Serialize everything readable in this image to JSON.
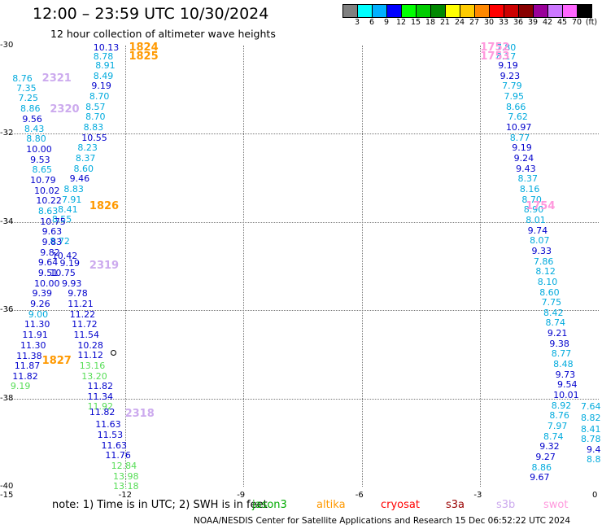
{
  "title": "12:00 – 23:59 UTC 10/30/2024",
  "subtitle": "12 hour collection of altimeter wave heights",
  "colorbar": {
    "colors": [
      "#808080",
      "#00ffff",
      "#00b0ff",
      "#0000ff",
      "#00ff00",
      "#00cc00",
      "#008800",
      "#ffff00",
      "#ffcc00",
      "#ff8800",
      "#ff0000",
      "#cc0000",
      "#880000",
      "#990099",
      "#cc77ff",
      "#ff66ff",
      "#000000"
    ],
    "ticks": [
      "3",
      "6",
      "9",
      "12",
      "15",
      "18",
      "21",
      "24",
      "27",
      "30",
      "33",
      "36",
      "39",
      "42",
      "45",
      "70",
      "(ft)"
    ]
  },
  "axes": {
    "lat_labels": [
      "-30",
      "-32",
      "-34",
      "-36",
      "-38",
      "-40"
    ],
    "lon_labels": [
      "-15",
      "-12",
      "-9",
      "-6",
      "-3",
      "0"
    ]
  },
  "note": "note:  1) Time is in UTC; 2) SWH is in feet",
  "satellites": [
    {
      "name": "jason3",
      "color": "#00aa00"
    },
    {
      "name": "altika",
      "color": "#ff9900"
    },
    {
      "name": "cryosat",
      "color": "#ff0000"
    },
    {
      "name": "s3a",
      "color": "#990000"
    },
    {
      "name": "s3b",
      "color": "#ccaaee"
    },
    {
      "name": "swot",
      "color": "#ff99dd"
    }
  ],
  "footer": "NOAA/NESDIS Center for Satellite Applications and Research    15 Dec 06:52:22 UTC 2024",
  "chart_data": {
    "type": "scatter",
    "title": "12:00 – 23:59 UTC 10/30/2024",
    "subtitle": "12 hour collection of altimeter wave heights",
    "xlim": [
      -15,
      0
    ],
    "ylim": [
      -40,
      -30
    ],
    "time_tags": [
      {
        "text": "1824",
        "lon": -11.9,
        "lat": -30.05,
        "color": "#ff9900"
      },
      {
        "text": "1825",
        "lon": -11.9,
        "lat": -30.25,
        "color": "#ff9900"
      },
      {
        "text": "1826",
        "lon": -12.9,
        "lat": -33.65,
        "color": "#ff9900"
      },
      {
        "text": "1827",
        "lon": -14.1,
        "lat": -37.15,
        "color": "#ff9900"
      },
      {
        "text": "2321",
        "lon": -14.1,
        "lat": -30.75,
        "color": "#ccaaee"
      },
      {
        "text": "2320",
        "lon": -13.9,
        "lat": -31.45,
        "color": "#ccaaee"
      },
      {
        "text": "2319",
        "lon": -12.9,
        "lat": -35.0,
        "color": "#ccaaee"
      },
      {
        "text": "2318",
        "lon": -12.0,
        "lat": -38.35,
        "color": "#ccaaee"
      },
      {
        "text": "1752",
        "lon": -3.0,
        "lat": -30.05,
        "color": "#ff99dd"
      },
      {
        "text": "1753",
        "lon": -3.0,
        "lat": -30.25,
        "color": "#ff99dd"
      },
      {
        "text": "1754",
        "lon": -1.85,
        "lat": -33.65,
        "color": "#ff99dd"
      }
    ],
    "points": [
      {
        "v": "10.13",
        "lon": -12.8,
        "lat": -30.05,
        "c": "#0000cc"
      },
      {
        "v": "8.78",
        "lon": -12.8,
        "lat": -30.25,
        "c": "#00aadd"
      },
      {
        "v": "8.91",
        "lon": -12.75,
        "lat": -30.47,
        "c": "#00aadd"
      },
      {
        "v": "8.49",
        "lon": -12.8,
        "lat": -30.7,
        "c": "#00aadd"
      },
      {
        "v": "9.19",
        "lon": -12.85,
        "lat": -30.93,
        "c": "#0000cc"
      },
      {
        "v": "8.70",
        "lon": -12.9,
        "lat": -31.17,
        "c": "#00aadd"
      },
      {
        "v": "8.57",
        "lon": -13.0,
        "lat": -31.4,
        "c": "#00aadd"
      },
      {
        "v": "8.70",
        "lon": -13.0,
        "lat": -31.63,
        "c": "#00aadd"
      },
      {
        "v": "8.83",
        "lon": -13.05,
        "lat": -31.87,
        "c": "#00aadd"
      },
      {
        "v": "10.55",
        "lon": -13.1,
        "lat": -32.1,
        "c": "#0000cc"
      },
      {
        "v": "8.23",
        "lon": -13.2,
        "lat": -32.33,
        "c": "#00aadd"
      },
      {
        "v": "8.37",
        "lon": -13.25,
        "lat": -32.57,
        "c": "#00aadd"
      },
      {
        "v": "8.60",
        "lon": -13.3,
        "lat": -32.8,
        "c": "#00aadd"
      },
      {
        "v": "9.46",
        "lon": -13.4,
        "lat": -33.03,
        "c": "#0000cc"
      },
      {
        "v": "8.83",
        "lon": -13.55,
        "lat": -33.27,
        "c": "#00aadd"
      },
      {
        "v": "7.91",
        "lon": -13.6,
        "lat": -33.5,
        "c": "#00aadd"
      },
      {
        "v": "8.41",
        "lon": -13.7,
        "lat": -33.73,
        "c": "#00aadd"
      },
      {
        "v": "8.55",
        "lon": -13.85,
        "lat": -33.95,
        "c": "#00aadd"
      },
      {
        "v": "8.72",
        "lon": -13.9,
        "lat": -34.45,
        "c": "#00aadd"
      },
      {
        "v": "9.19",
        "lon": -13.65,
        "lat": -34.95,
        "c": "#0000cc"
      },
      {
        "v": "10.75",
        "lon": -13.9,
        "lat": -35.17,
        "c": "#0000cc"
      },
      {
        "v": "9.93",
        "lon": -13.6,
        "lat": -35.4,
        "c": "#0000cc"
      },
      {
        "v": "9.78",
        "lon": -13.45,
        "lat": -35.63,
        "c": "#0000cc"
      },
      {
        "v": "11.21",
        "lon": -13.45,
        "lat": -35.87,
        "c": "#0000cc"
      },
      {
        "v": "11.22",
        "lon": -13.4,
        "lat": -36.1,
        "c": "#0000cc"
      },
      {
        "v": "11.72",
        "lon": -13.35,
        "lat": -36.33,
        "c": "#0000cc"
      },
      {
        "v": "11.54",
        "lon": -13.3,
        "lat": -36.57,
        "c": "#0000cc"
      },
      {
        "v": "10.28",
        "lon": -13.2,
        "lat": -36.8,
        "c": "#0000cc"
      },
      {
        "v": "11.12",
        "lon": -13.2,
        "lat": -37.03,
        "c": "#0000cc"
      },
      {
        "v": "13.16",
        "lon": -13.15,
        "lat": -37.27,
        "c": "#55dd55"
      },
      {
        "v": "13.20",
        "lon": -13.1,
        "lat": -37.5,
        "c": "#55dd55"
      },
      {
        "v": "11.82",
        "lon": -12.95,
        "lat": -37.73,
        "c": "#0000cc"
      },
      {
        "v": "11.34",
        "lon": -12.95,
        "lat": -37.97,
        "c": "#0000cc"
      },
      {
        "v": "11.92",
        "lon": -12.95,
        "lat": -38.2,
        "c": "#55dd55"
      },
      {
        "v": "11.82",
        "lon": -12.9,
        "lat": -38.33,
        "c": "#0000cc"
      },
      {
        "v": "11.63",
        "lon": -12.75,
        "lat": -38.6,
        "c": "#0000cc"
      },
      {
        "v": "11.53",
        "lon": -12.7,
        "lat": -38.83,
        "c": "#0000cc"
      },
      {
        "v": "11.63",
        "lon": -12.6,
        "lat": -39.07,
        "c": "#0000cc"
      },
      {
        "v": "11.76",
        "lon": -12.5,
        "lat": -39.3,
        "c": "#0000cc"
      },
      {
        "v": "12.84",
        "lon": -12.35,
        "lat": -39.53,
        "c": "#55dd55"
      },
      {
        "v": "13.98",
        "lon": -12.3,
        "lat": -39.77,
        "c": "#55dd55"
      },
      {
        "v": "13.18",
        "lon": -12.3,
        "lat": -40.0,
        "c": "#55dd55"
      },
      {
        "v": "8.76",
        "lon": -14.85,
        "lat": -30.75,
        "c": "#00aadd"
      },
      {
        "v": "7.35",
        "lon": -14.75,
        "lat": -30.97,
        "c": "#00aadd"
      },
      {
        "v": "7.25",
        "lon": -14.7,
        "lat": -31.2,
        "c": "#00aadd"
      },
      {
        "v": "8.86",
        "lon": -14.65,
        "lat": -31.43,
        "c": "#00aadd"
      },
      {
        "v": "9.56",
        "lon": -14.6,
        "lat": -31.67,
        "c": "#0000cc"
      },
      {
        "v": "8.43",
        "lon": -14.55,
        "lat": -31.9,
        "c": "#00aadd"
      },
      {
        "v": "8.80",
        "lon": -14.5,
        "lat": -32.13,
        "c": "#00aadd"
      },
      {
        "v": "10.00",
        "lon": -14.5,
        "lat": -32.37,
        "c": "#0000cc"
      },
      {
        "v": "9.53",
        "lon": -14.4,
        "lat": -32.6,
        "c": "#0000cc"
      },
      {
        "v": "8.65",
        "lon": -14.35,
        "lat": -32.83,
        "c": "#00aadd"
      },
      {
        "v": "10.79",
        "lon": -14.4,
        "lat": -33.07,
        "c": "#0000cc"
      },
      {
        "v": "10.02",
        "lon": -14.3,
        "lat": -33.3,
        "c": "#0000cc"
      },
      {
        "v": "10.22",
        "lon": -14.25,
        "lat": -33.53,
        "c": "#0000cc"
      },
      {
        "v": "8.63",
        "lon": -14.2,
        "lat": -33.77,
        "c": "#00aadd"
      },
      {
        "v": "10.75",
        "lon": -14.15,
        "lat": -34.0,
        "c": "#0000cc"
      },
      {
        "v": "9.63",
        "lon": -14.1,
        "lat": -34.23,
        "c": "#0000cc"
      },
      {
        "v": "9.83",
        "lon": -14.1,
        "lat": -34.47,
        "c": "#0000cc"
      },
      {
        "v": "9.82",
        "lon": -14.15,
        "lat": -34.7,
        "c": "#0000cc"
      },
      {
        "v": "10.42",
        "lon": -13.85,
        "lat": -34.77,
        "c": "#0000cc"
      },
      {
        "v": "9.64",
        "lon": -14.2,
        "lat": -34.93,
        "c": "#0000cc"
      },
      {
        "v": "9.51",
        "lon": -14.2,
        "lat": -35.17,
        "c": "#0000cc"
      },
      {
        "v": "10.00",
        "lon": -14.3,
        "lat": -35.4,
        "c": "#0000cc"
      },
      {
        "v": "9.39",
        "lon": -14.35,
        "lat": -35.63,
        "c": "#0000cc"
      },
      {
        "v": "9.26",
        "lon": -14.4,
        "lat": -35.87,
        "c": "#0000cc"
      },
      {
        "v": "9.00",
        "lon": -14.45,
        "lat": -36.1,
        "c": "#00aadd"
      },
      {
        "v": "11.30",
        "lon": -14.55,
        "lat": -36.33,
        "c": "#0000cc"
      },
      {
        "v": "11.91",
        "lon": -14.6,
        "lat": -36.57,
        "c": "#0000cc"
      },
      {
        "v": "11.30",
        "lon": -14.65,
        "lat": -36.8,
        "c": "#0000cc"
      },
      {
        "v": "11.38",
        "lon": -14.75,
        "lat": -37.05,
        "c": "#0000cc"
      },
      {
        "v": "11.87",
        "lon": -14.8,
        "lat": -37.27,
        "c": "#0000cc"
      },
      {
        "v": "11.82",
        "lon": -14.85,
        "lat": -37.5,
        "c": "#0000cc"
      },
      {
        "v": "9.19",
        "lon": -14.9,
        "lat": -37.73,
        "c": "#55dd55"
      },
      {
        "v": "7.80",
        "lon": -2.6,
        "lat": -30.05,
        "c": "#00aadd"
      },
      {
        "v": "8.17",
        "lon": -2.6,
        "lat": -30.25,
        "c": "#00aadd"
      },
      {
        "v": "9.19",
        "lon": -2.55,
        "lat": -30.47,
        "c": "#0000cc"
      },
      {
        "v": "9.23",
        "lon": -2.5,
        "lat": -30.7,
        "c": "#0000cc"
      },
      {
        "v": "7.79",
        "lon": -2.45,
        "lat": -30.93,
        "c": "#00aadd"
      },
      {
        "v": "7.95",
        "lon": -2.4,
        "lat": -31.17,
        "c": "#00aadd"
      },
      {
        "v": "8.66",
        "lon": -2.35,
        "lat": -31.4,
        "c": "#00aadd"
      },
      {
        "v": "7.62",
        "lon": -2.3,
        "lat": -31.63,
        "c": "#00aadd"
      },
      {
        "v": "10.97",
        "lon": -2.35,
        "lat": -31.87,
        "c": "#0000cc"
      },
      {
        "v": "8.77",
        "lon": -2.25,
        "lat": -32.1,
        "c": "#00aadd"
      },
      {
        "v": "9.19",
        "lon": -2.2,
        "lat": -32.33,
        "c": "#0000cc"
      },
      {
        "v": "9.24",
        "lon": -2.15,
        "lat": -32.57,
        "c": "#0000cc"
      },
      {
        "v": "9.43",
        "lon": -2.1,
        "lat": -32.8,
        "c": "#0000cc"
      },
      {
        "v": "8.37",
        "lon": -2.05,
        "lat": -33.03,
        "c": "#00aadd"
      },
      {
        "v": "8.16",
        "lon": -2.0,
        "lat": -33.27,
        "c": "#00aadd"
      },
      {
        "v": "8.70",
        "lon": -1.95,
        "lat": -33.5,
        "c": "#00aadd"
      },
      {
        "v": "8.90",
        "lon": -1.9,
        "lat": -33.73,
        "c": "#00aadd"
      },
      {
        "v": "8.01",
        "lon": -1.85,
        "lat": -33.97,
        "c": "#00aadd"
      },
      {
        "v": "9.74",
        "lon": -1.8,
        "lat": -34.2,
        "c": "#0000cc"
      },
      {
        "v": "8.07",
        "lon": -1.75,
        "lat": -34.43,
        "c": "#00aadd"
      },
      {
        "v": "9.33",
        "lon": -1.7,
        "lat": -34.67,
        "c": "#0000cc"
      },
      {
        "v": "7.86",
        "lon": -1.65,
        "lat": -34.9,
        "c": "#00aadd"
      },
      {
        "v": "8.12",
        "lon": -1.6,
        "lat": -35.13,
        "c": "#00aadd"
      },
      {
        "v": "8.10",
        "lon": -1.55,
        "lat": -35.37,
        "c": "#00aadd"
      },
      {
        "v": "8.60",
        "lon": -1.5,
        "lat": -35.6,
        "c": "#00aadd"
      },
      {
        "v": "7.75",
        "lon": -1.45,
        "lat": -35.83,
        "c": "#00aadd"
      },
      {
        "v": "8.42",
        "lon": -1.4,
        "lat": -36.07,
        "c": "#00aadd"
      },
      {
        "v": "8.74",
        "lon": -1.35,
        "lat": -36.3,
        "c": "#00aadd"
      },
      {
        "v": "9.21",
        "lon": -1.3,
        "lat": -36.53,
        "c": "#0000cc"
      },
      {
        "v": "9.38",
        "lon": -1.25,
        "lat": -36.77,
        "c": "#0000cc"
      },
      {
        "v": "8.77",
        "lon": -1.2,
        "lat": -37.0,
        "c": "#00aadd"
      },
      {
        "v": "8.48",
        "lon": -1.15,
        "lat": -37.23,
        "c": "#00aadd"
      },
      {
        "v": "9.73",
        "lon": -1.1,
        "lat": -37.47,
        "c": "#0000cc"
      },
      {
        "v": "9.54",
        "lon": -1.05,
        "lat": -37.7,
        "c": "#0000cc"
      },
      {
        "v": "10.01",
        "lon": -1.15,
        "lat": -37.93,
        "c": "#0000cc"
      },
      {
        "v": "8.92",
        "lon": -1.2,
        "lat": -38.17,
        "c": "#00aadd"
      },
      {
        "v": "8.76",
        "lon": -1.25,
        "lat": -38.4,
        "c": "#00aadd"
      },
      {
        "v": "7.97",
        "lon": -1.3,
        "lat": -38.63,
        "c": "#00aadd"
      },
      {
        "v": "8.74",
        "lon": -1.4,
        "lat": -38.87,
        "c": "#00aadd"
      },
      {
        "v": "9.32",
        "lon": -1.5,
        "lat": -39.1,
        "c": "#0000cc"
      },
      {
        "v": "9.27",
        "lon": -1.6,
        "lat": -39.33,
        "c": "#0000cc"
      },
      {
        "v": "8.86",
        "lon": -1.7,
        "lat": -39.57,
        "c": "#00aadd"
      },
      {
        "v": "9.67",
        "lon": -1.75,
        "lat": -39.8,
        "c": "#0000cc"
      },
      {
        "v": "7.64",
        "lon": -0.35,
        "lat": -38.2,
        "c": "#00aadd"
      },
      {
        "v": "8.82",
        "lon": -0.15,
        "lat": -38.45,
        "c": "#00aadd"
      },
      {
        "v": "8.41",
        "lon": -0.1,
        "lat": -38.7,
        "c": "#00aadd"
      },
      {
        "v": "8.78",
        "lon": -0.05,
        "lat": -38.93,
        "c": "#00aadd"
      },
      {
        "v": "9.4",
        "lon": -0.05,
        "lat": -39.17,
        "c": "#0000cc"
      },
      {
        "v": "8.8",
        "lon": 0.0,
        "lat": -39.4,
        "c": "#00aadd"
      }
    ]
  }
}
